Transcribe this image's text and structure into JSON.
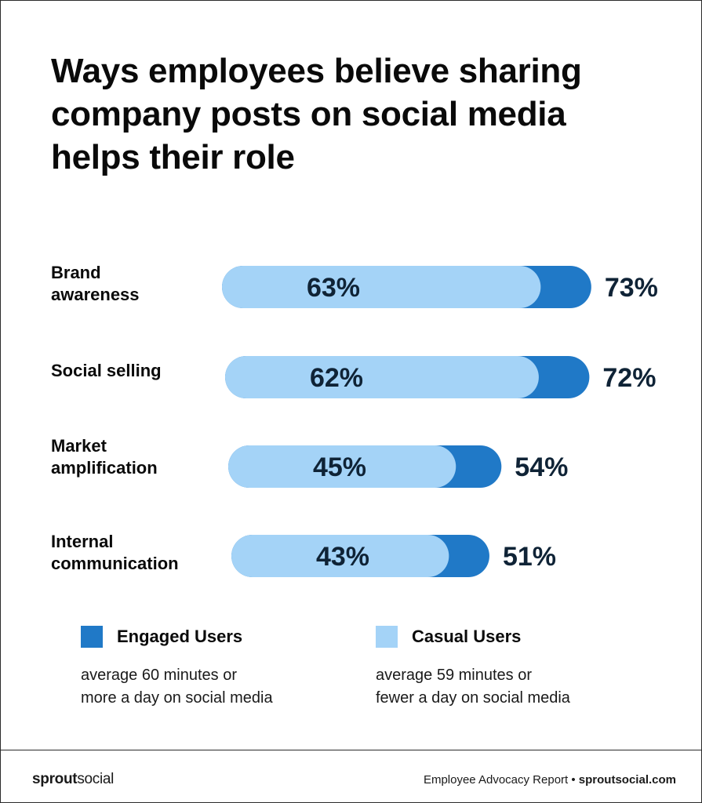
{
  "chart_data": {
    "type": "bar",
    "title": "Ways employees believe sharing company posts on social media helps their role",
    "categories": [
      [
        "Brand",
        "awareness"
      ],
      [
        "Social selling"
      ],
      [
        "Market",
        "amplification"
      ],
      [
        "Internal",
        "communication"
      ]
    ],
    "series": [
      {
        "name": "Engaged Users",
        "values": [
          73,
          72,
          54,
          51
        ],
        "labels": [
          "73%",
          "72%",
          "54%",
          "51%"
        ],
        "color": "#2079c7"
      },
      {
        "name": "Casual Users",
        "values": [
          63,
          62,
          45,
          43
        ],
        "labels": [
          "63%",
          "62%",
          "45%",
          "43%"
        ],
        "color": "#a4d3f7"
      }
    ],
    "value_label_color": "#0f2336",
    "orientation": "horizontal",
    "bar_shape": "rounded",
    "grid": false,
    "legend_position": "bottom"
  },
  "legend": {
    "engaged": {
      "label": "Engaged Users",
      "desc_1": "average 60 minutes or",
      "desc_2": "more a day on social media",
      "color": "#2079c7"
    },
    "casual": {
      "label": "Casual Users",
      "desc_1": "average 59 minutes or",
      "desc_2": "fewer a day on social media",
      "color": "#a4d3f7"
    }
  },
  "footer": {
    "logo_bold": "sprout",
    "logo_light": "social",
    "report": "Employee Advocacy Report",
    "separator": " • ",
    "site": "sproutsocial.com"
  }
}
